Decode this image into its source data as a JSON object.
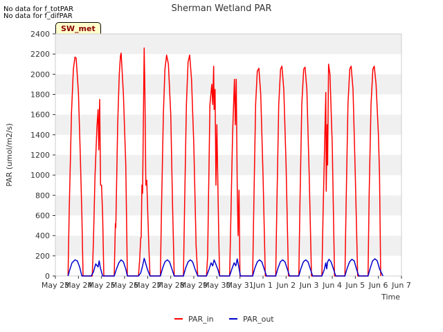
{
  "notes": [
    "No data for f_totPAR",
    "No data for f_difPAR"
  ],
  "badge": "SW_met",
  "chart_data": {
    "type": "line",
    "title": "Sherman Wetland PAR",
    "xlabel": "Time",
    "ylabel": "PAR (umol/m2/s)",
    "ylim": [
      0,
      2400
    ],
    "xlim_days": [
      0,
      15
    ],
    "x_tick_labels": [
      "May 23",
      "May 24",
      "May 25",
      "May 26",
      "May 27",
      "May 28",
      "May 29",
      "May 30",
      "May 31",
      "Jun 1",
      "Jun 2",
      "Jun 3",
      "Jun 4",
      "Jun 5",
      "Jun 6",
      "Jun 7"
    ],
    "y_ticks": [
      0,
      200,
      400,
      600,
      800,
      1000,
      1200,
      1400,
      1600,
      1800,
      2000,
      2200,
      2400
    ],
    "grid_bands": true,
    "legend_placement": "bottom-center",
    "series": [
      {
        "name": "PAR_in",
        "color": "#ff0000",
        "daily_peaks": [
          2170,
          1750,
          2210,
          2260,
          2190,
          2190,
          2080,
          1950,
          2060,
          2080,
          2070,
          2100,
          2080,
          2080
        ],
        "points": [
          [
            0.55,
            0
          ],
          [
            0.6,
            650
          ],
          [
            0.7,
            1620
          ],
          [
            0.78,
            2050
          ],
          [
            0.85,
            2170
          ],
          [
            0.9,
            2160
          ],
          [
            1.0,
            1820
          ],
          [
            1.08,
            1200
          ],
          [
            1.15,
            600
          ],
          [
            1.2,
            0
          ],
          [
            1.6,
            0
          ],
          [
            1.65,
            350
          ],
          [
            1.72,
            1000
          ],
          [
            1.8,
            1470
          ],
          [
            1.85,
            1650
          ],
          [
            1.88,
            1250
          ],
          [
            1.92,
            1750
          ],
          [
            1.96,
            900
          ],
          [
            2.0,
            900
          ],
          [
            2.05,
            600
          ],
          [
            2.1,
            0
          ],
          [
            2.55,
            0
          ],
          [
            2.6,
            520
          ],
          [
            2.62,
            480
          ],
          [
            2.7,
            1500
          ],
          [
            2.77,
            2000
          ],
          [
            2.82,
            2180
          ],
          [
            2.85,
            2210
          ],
          [
            2.95,
            1800
          ],
          [
            3.05,
            1100
          ],
          [
            3.12,
            0
          ],
          [
            3.6,
            0
          ],
          [
            3.65,
            150
          ],
          [
            3.7,
            380
          ],
          [
            3.72,
            380
          ],
          [
            3.75,
            900
          ],
          [
            3.78,
            820
          ],
          [
            3.85,
            2260
          ],
          [
            3.88,
            1850
          ],
          [
            3.92,
            900
          ],
          [
            3.96,
            950
          ],
          [
            4.05,
            300
          ],
          [
            4.1,
            0
          ],
          [
            4.55,
            0
          ],
          [
            4.6,
            650
          ],
          [
            4.68,
            1600
          ],
          [
            4.75,
            2050
          ],
          [
            4.82,
            2190
          ],
          [
            4.9,
            2100
          ],
          [
            5.0,
            1600
          ],
          [
            5.08,
            700
          ],
          [
            5.15,
            0
          ],
          [
            5.55,
            0
          ],
          [
            5.6,
            700
          ],
          [
            5.68,
            1700
          ],
          [
            5.75,
            2120
          ],
          [
            5.82,
            2190
          ],
          [
            5.9,
            1950
          ],
          [
            6.0,
            1300
          ],
          [
            6.1,
            300
          ],
          [
            6.17,
            0
          ],
          [
            6.55,
            0
          ],
          [
            6.6,
            200
          ],
          [
            6.7,
            1700
          ],
          [
            6.78,
            1900
          ],
          [
            6.82,
            1700
          ],
          [
            6.86,
            2080
          ],
          [
            6.88,
            1650
          ],
          [
            6.92,
            1850
          ],
          [
            6.96,
            900
          ],
          [
            7.0,
            1500
          ],
          [
            7.08,
            400
          ],
          [
            7.12,
            0
          ],
          [
            7.55,
            0
          ],
          [
            7.6,
            500
          ],
          [
            7.68,
            1400
          ],
          [
            7.76,
            1950
          ],
          [
            7.8,
            1500
          ],
          [
            7.84,
            1950
          ],
          [
            7.88,
            900
          ],
          [
            7.92,
            400
          ],
          [
            7.96,
            850
          ],
          [
            8.0,
            0
          ],
          [
            8.55,
            0
          ],
          [
            8.6,
            700
          ],
          [
            8.68,
            1700
          ],
          [
            8.75,
            2030
          ],
          [
            8.82,
            2060
          ],
          [
            8.9,
            1800
          ],
          [
            9.0,
            1000
          ],
          [
            9.1,
            0
          ],
          [
            9.55,
            0
          ],
          [
            9.6,
            700
          ],
          [
            9.68,
            1700
          ],
          [
            9.76,
            2050
          ],
          [
            9.82,
            2080
          ],
          [
            9.9,
            1850
          ],
          [
            10.0,
            1100
          ],
          [
            10.1,
            0
          ],
          [
            10.55,
            0
          ],
          [
            10.6,
            700
          ],
          [
            10.68,
            1700
          ],
          [
            10.76,
            2050
          ],
          [
            10.82,
            2070
          ],
          [
            10.9,
            1850
          ],
          [
            11.0,
            1000
          ],
          [
            11.1,
            0
          ],
          [
            11.55,
            0
          ],
          [
            11.6,
            600
          ],
          [
            11.68,
            1400
          ],
          [
            11.72,
            1820
          ],
          [
            11.74,
            840
          ],
          [
            11.78,
            1500
          ],
          [
            11.8,
            1100
          ],
          [
            11.84,
            2100
          ],
          [
            11.9,
            2000
          ],
          [
            12.0,
            1300
          ],
          [
            12.1,
            0
          ],
          [
            12.55,
            0
          ],
          [
            12.6,
            700
          ],
          [
            12.68,
            1700
          ],
          [
            12.76,
            2050
          ],
          [
            12.82,
            2080
          ],
          [
            12.9,
            1850
          ],
          [
            13.0,
            1000
          ],
          [
            13.1,
            0
          ],
          [
            13.55,
            0
          ],
          [
            13.6,
            800
          ],
          [
            13.68,
            1700
          ],
          [
            13.76,
            2050
          ],
          [
            13.82,
            2080
          ],
          [
            13.9,
            1900
          ],
          [
            14.0,
            1400
          ],
          [
            14.05,
            1000
          ],
          [
            14.1,
            0
          ]
        ]
      },
      {
        "name": "PAR_out",
        "color": "#0000cc",
        "daily_peaks": [
          160,
          150,
          160,
          175,
          160,
          160,
          160,
          170,
          160,
          160,
          160,
          165,
          165,
          170
        ],
        "points": [
          [
            0.55,
            0
          ],
          [
            0.62,
            60
          ],
          [
            0.72,
            130
          ],
          [
            0.85,
            160
          ],
          [
            0.95,
            150
          ],
          [
            1.05,
            90
          ],
          [
            1.15,
            0
          ],
          [
            1.55,
            0
          ],
          [
            1.65,
            40
          ],
          [
            1.75,
            120
          ],
          [
            1.85,
            90
          ],
          [
            1.9,
            150
          ],
          [
            1.95,
            80
          ],
          [
            2.05,
            0
          ],
          [
            2.55,
            0
          ],
          [
            2.65,
            70
          ],
          [
            2.75,
            130
          ],
          [
            2.85,
            160
          ],
          [
            2.95,
            140
          ],
          [
            3.05,
            70
          ],
          [
            3.12,
            0
          ],
          [
            3.6,
            0
          ],
          [
            3.7,
            30
          ],
          [
            3.78,
            100
          ],
          [
            3.85,
            175
          ],
          [
            3.92,
            120
          ],
          [
            4.0,
            60
          ],
          [
            4.1,
            0
          ],
          [
            4.55,
            0
          ],
          [
            4.65,
            80
          ],
          [
            4.75,
            140
          ],
          [
            4.85,
            160
          ],
          [
            4.95,
            140
          ],
          [
            5.05,
            70
          ],
          [
            5.15,
            0
          ],
          [
            5.55,
            0
          ],
          [
            5.65,
            80
          ],
          [
            5.75,
            140
          ],
          [
            5.85,
            160
          ],
          [
            5.95,
            140
          ],
          [
            6.05,
            70
          ],
          [
            6.17,
            0
          ],
          [
            6.55,
            0
          ],
          [
            6.65,
            60
          ],
          [
            6.75,
            130
          ],
          [
            6.82,
            100
          ],
          [
            6.88,
            160
          ],
          [
            6.95,
            120
          ],
          [
            7.05,
            60
          ],
          [
            7.12,
            0
          ],
          [
            7.55,
            0
          ],
          [
            7.65,
            70
          ],
          [
            7.75,
            130
          ],
          [
            7.82,
            100
          ],
          [
            7.88,
            170
          ],
          [
            7.95,
            90
          ],
          [
            8.02,
            0
          ],
          [
            8.55,
            0
          ],
          [
            8.65,
            80
          ],
          [
            8.75,
            140
          ],
          [
            8.85,
            160
          ],
          [
            8.95,
            140
          ],
          [
            9.05,
            70
          ],
          [
            9.15,
            0
          ],
          [
            9.55,
            0
          ],
          [
            9.65,
            80
          ],
          [
            9.75,
            140
          ],
          [
            9.85,
            160
          ],
          [
            9.95,
            140
          ],
          [
            10.05,
            70
          ],
          [
            10.15,
            0
          ],
          [
            10.55,
            0
          ],
          [
            10.65,
            80
          ],
          [
            10.75,
            140
          ],
          [
            10.85,
            160
          ],
          [
            10.95,
            140
          ],
          [
            11.05,
            70
          ],
          [
            11.15,
            0
          ],
          [
            11.55,
            0
          ],
          [
            11.65,
            60
          ],
          [
            11.72,
            130
          ],
          [
            11.76,
            70
          ],
          [
            11.8,
            140
          ],
          [
            11.86,
            165
          ],
          [
            11.95,
            140
          ],
          [
            12.05,
            70
          ],
          [
            12.15,
            0
          ],
          [
            12.55,
            0
          ],
          [
            12.65,
            80
          ],
          [
            12.75,
            140
          ],
          [
            12.85,
            165
          ],
          [
            12.95,
            150
          ],
          [
            13.05,
            70
          ],
          [
            13.15,
            0
          ],
          [
            13.55,
            0
          ],
          [
            13.65,
            80
          ],
          [
            13.75,
            150
          ],
          [
            13.85,
            170
          ],
          [
            13.95,
            150
          ],
          [
            14.05,
            70
          ],
          [
            14.2,
            0
          ]
        ]
      }
    ]
  }
}
